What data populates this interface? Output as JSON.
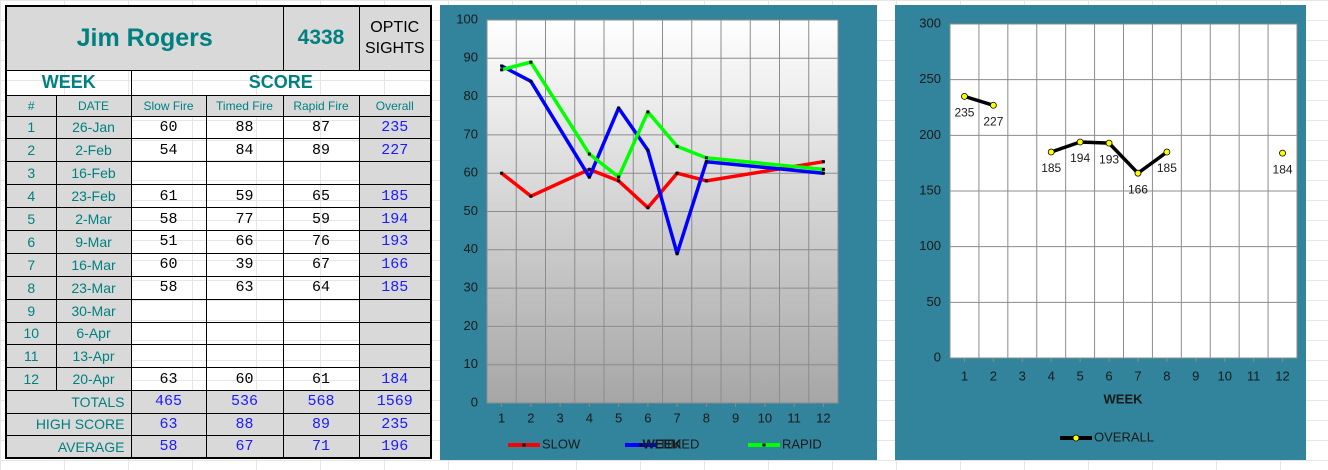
{
  "table": {
    "name": "Jim Rogers",
    "number": "4338",
    "label": "OPTIC SIGHTS",
    "groups": [
      "WEEK",
      "SCORE"
    ],
    "columns": [
      "#",
      "DATE",
      "Slow Fire",
      "Timed Fire",
      "Rapid Fire",
      "Overall"
    ],
    "rows": [
      [
        1,
        "26-Jan",
        60,
        88,
        87,
        235
      ],
      [
        2,
        "2-Feb",
        54,
        84,
        89,
        227
      ],
      [
        3,
        "16-Feb",
        null,
        null,
        null,
        null
      ],
      [
        4,
        "23-Feb",
        61,
        59,
        65,
        185
      ],
      [
        5,
        "2-Mar",
        58,
        77,
        59,
        194
      ],
      [
        6,
        "9-Mar",
        51,
        66,
        76,
        193
      ],
      [
        7,
        "16-Mar",
        60,
        39,
        67,
        166
      ],
      [
        8,
        "23-Mar",
        58,
        63,
        64,
        185
      ],
      [
        9,
        "30-Mar",
        null,
        null,
        null,
        null
      ],
      [
        10,
        "6-Apr",
        null,
        null,
        null,
        null
      ],
      [
        11,
        "13-Apr",
        null,
        null,
        null,
        null
      ],
      [
        12,
        "20-Apr",
        63,
        60,
        61,
        184
      ]
    ],
    "summary": [
      {
        "label": "TOTALS",
        "values": [
          465,
          536,
          568,
          1569
        ]
      },
      {
        "label": "HIGH SCORE",
        "values": [
          63,
          88,
          89,
          235
        ]
      },
      {
        "label": "AVERAGE",
        "values": [
          58,
          67,
          71,
          196
        ]
      }
    ]
  },
  "chart_data": [
    {
      "type": "line",
      "xlabel": "WEEK",
      "x": [
        1,
        2,
        4,
        5,
        6,
        7,
        8,
        12
      ],
      "xlim": [
        0.5,
        12.5
      ],
      "xticks": [
        1,
        2,
        3,
        4,
        5,
        6,
        7,
        8,
        9,
        10,
        11,
        12
      ],
      "ylim": [
        0,
        100
      ],
      "yticks": [
        0,
        10,
        20,
        30,
        40,
        50,
        60,
        70,
        80,
        90,
        100
      ],
      "grid": true,
      "legend": "bottom",
      "series": [
        {
          "name": "SLOW",
          "color": "#ff0000",
          "values": [
            60,
            54,
            61,
            58,
            51,
            60,
            58,
            63
          ]
        },
        {
          "name": "TIMED",
          "color": "#0000ff",
          "values": [
            88,
            84,
            59,
            77,
            66,
            39,
            63,
            60
          ]
        },
        {
          "name": "RAPID",
          "color": "#00ff00",
          "values": [
            87,
            89,
            65,
            59,
            76,
            67,
            64,
            61
          ]
        }
      ]
    },
    {
      "type": "line",
      "xlabel": "WEEK",
      "x": [
        1,
        2,
        3,
        4,
        5,
        6,
        7,
        8,
        9,
        10,
        11,
        12
      ],
      "xlim": [
        0.5,
        12.5
      ],
      "xticks": [
        1,
        2,
        3,
        4,
        5,
        6,
        7,
        8,
        9,
        10,
        11,
        12
      ],
      "ylim": [
        0,
        300
      ],
      "yticks": [
        0,
        50,
        100,
        150,
        200,
        250,
        300
      ],
      "grid": true,
      "legend": "bottom",
      "data_labels": true,
      "series": [
        {
          "name": "OVERALL",
          "color": "#000000",
          "marker_color": "#ffff00",
          "values": [
            235,
            227,
            null,
            185,
            194,
            193,
            166,
            185,
            null,
            null,
            null,
            184
          ]
        }
      ]
    }
  ]
}
